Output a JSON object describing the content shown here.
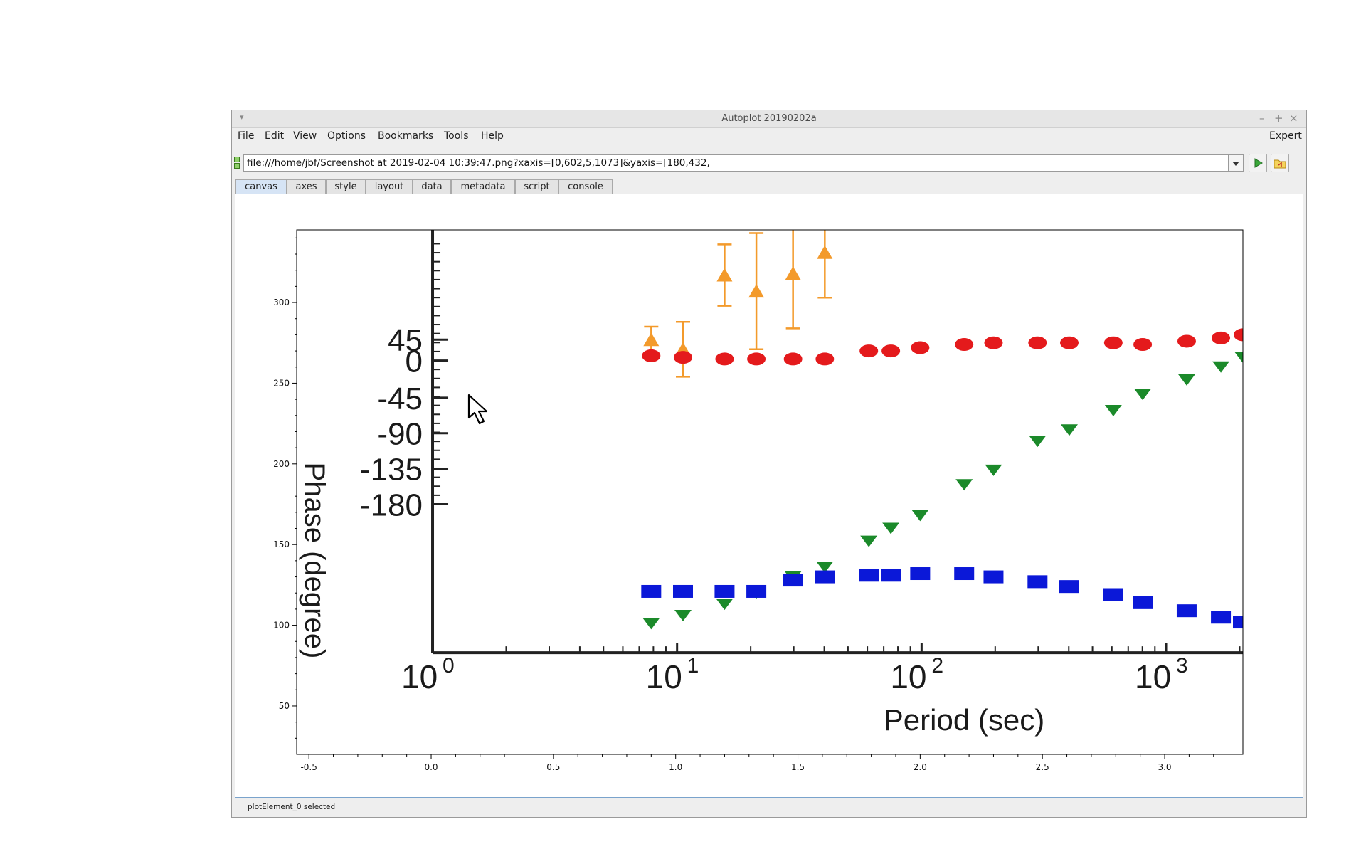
{
  "window": {
    "title": "Autoplot 20190202a",
    "controls": {
      "minimize": "–",
      "maximize": "+",
      "close": "×"
    }
  },
  "menubar": {
    "items": [
      "File",
      "Edit",
      "View",
      "Options",
      "Bookmarks",
      "Tools",
      "Help"
    ],
    "right_label": "Expert"
  },
  "address": {
    "value": "file:///home/jbf/Screenshot at 2019-02-04 10:39:47.png?xaxis=[0,602,5,1073]&yaxis=[180,432,"
  },
  "tabs": [
    "canvas",
    "axes",
    "style",
    "layout",
    "data",
    "metadata",
    "script",
    "console"
  ],
  "active_tab": "canvas",
  "status": {
    "text": "plotElement_0 selected"
  },
  "icons": {
    "address-drag": "address-drag-icon",
    "run": "play-icon",
    "browse": "folder-icon",
    "menu": "window-menu-icon",
    "pointer": "mouse-pointer-icon"
  },
  "colors": {
    "orange": "#f39a2b",
    "red": "#e41a1c",
    "green": "#1b8a2a",
    "blue": "#0b18d8",
    "tab_active": "#d6e4f5",
    "canvas_border": "#7aa3cc"
  },
  "chart_data": {
    "type": "scatter",
    "xlim": [
      -0.55,
      3.32
    ],
    "ylim": [
      20,
      345
    ],
    "x_ticks": [
      -0.5,
      0.0,
      0.5,
      1.0,
      1.5,
      2.0,
      2.5,
      3.0
    ],
    "y_ticks": [
      50,
      100,
      150,
      200,
      250,
      300
    ],
    "x_tick_labels": [
      "-0.5",
      "0.0",
      "0.5",
      "1.0",
      "1.5",
      "2.0",
      "2.5",
      "3.0"
    ],
    "y_tick_labels": [
      "50",
      "100",
      "150",
      "200",
      "250",
      "300"
    ],
    "image_content": {
      "ylabel": "Phase (degree)",
      "xlabel": "Period (sec)",
      "inner_y_ticks": [
        "45",
        "0",
        "-45",
        "-90",
        "-135",
        "-180"
      ],
      "inner_x_ticks": [
        "10",
        "10",
        "10",
        "10"
      ],
      "inner_x_exponents": [
        "0",
        "1",
        "2",
        "3"
      ],
      "series": [
        {
          "color_key": "orange",
          "marker": "triangle-up",
          "x": [
            0.9,
            1.03,
            1.2,
            1.33,
            1.48,
            1.61
          ],
          "y": [
            277,
            271,
            317,
            307,
            318,
            331
          ],
          "err": [
            8,
            17,
            19,
            36,
            34,
            28
          ]
        },
        {
          "color_key": "red",
          "marker": "circle",
          "x": [
            0.9,
            1.03,
            1.2,
            1.33,
            1.48,
            1.61,
            1.79,
            1.88,
            2.0,
            2.18,
            2.3,
            2.48,
            2.61,
            2.79,
            2.91,
            3.09,
            3.23,
            3.32
          ],
          "y": [
            267,
            266,
            265,
            265,
            265,
            265,
            270,
            270,
            272,
            274,
            275,
            275,
            275,
            275,
            274,
            276,
            278,
            280
          ]
        },
        {
          "color_key": "green",
          "marker": "triangle-down",
          "x": [
            0.9,
            1.03,
            1.2,
            1.33,
            1.48,
            1.61,
            1.79,
            1.88,
            2.0,
            2.18,
            2.3,
            2.48,
            2.61,
            2.79,
            2.91,
            3.09,
            3.23,
            3.32
          ],
          "y": [
            101,
            106,
            113,
            120,
            130,
            136,
            152,
            160,
            168,
            187,
            196,
            214,
            221,
            233,
            243,
            252,
            260,
            266
          ]
        },
        {
          "color_key": "blue",
          "marker": "square",
          "x": [
            0.9,
            1.03,
            1.2,
            1.33,
            1.48,
            1.61,
            1.79,
            1.88,
            2.0,
            2.18,
            2.3,
            2.48,
            2.61,
            2.79,
            2.91,
            3.09,
            3.23,
            3.32
          ],
          "y": [
            121,
            121,
            121,
            121,
            128,
            130,
            131,
            131,
            132,
            132,
            130,
            127,
            124,
            119,
            114,
            109,
            105,
            102
          ]
        }
      ]
    }
  }
}
